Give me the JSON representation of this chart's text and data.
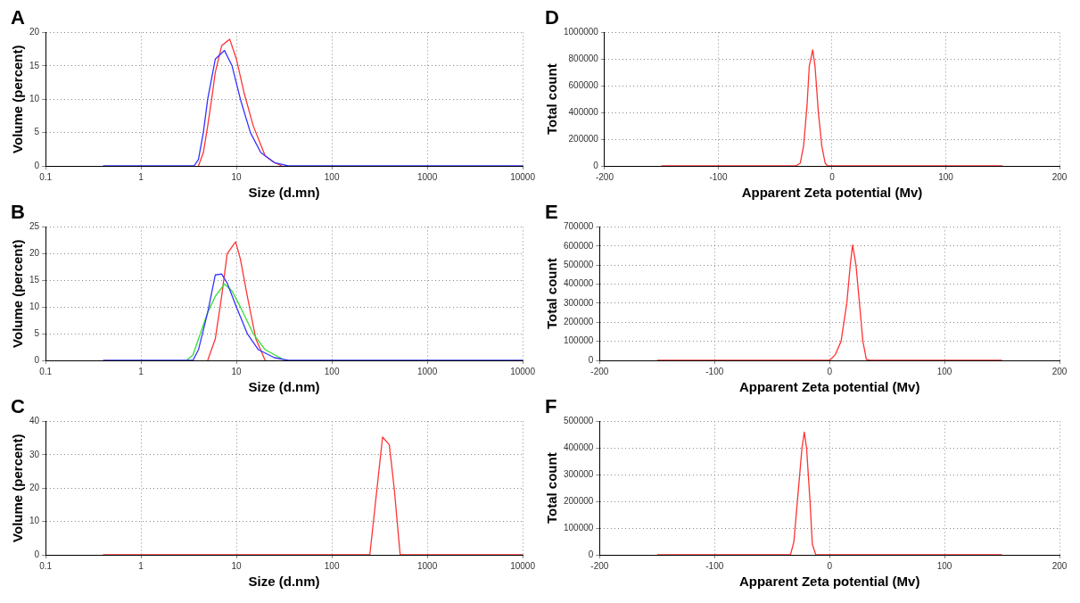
{
  "chart_data": [
    {
      "type": "line",
      "title": "A",
      "xlabel": "Size (d.mn)",
      "ylabel": "Volume (percent)",
      "log": "x",
      "xlim": [
        0.1,
        10000
      ],
      "xticks": [
        0.1,
        1,
        10,
        100,
        1000,
        10000
      ],
      "ylim": [
        0,
        20
      ],
      "yticks": [
        0,
        5,
        10,
        15,
        20
      ],
      "grid": true,
      "marker": "none",
      "line_style": "solid",
      "series": [
        {
          "color": "#ff3333",
          "x": [
            4,
            4.5,
            5,
            5.5,
            6,
            7,
            8.5,
            10,
            12,
            15,
            20,
            25,
            30
          ],
          "values": [
            0,
            2,
            6,
            10,
            14,
            18,
            19,
            16,
            11,
            6,
            1.5,
            0.5,
            0
          ]
        },
        {
          "color": "#3333ff",
          "x": [
            0.4,
            3.6,
            4,
            4.5,
            5,
            6,
            7.5,
            9,
            11,
            14,
            18,
            25,
            35,
            10000
          ],
          "values": [
            0,
            0,
            1,
            5,
            10,
            16,
            17.3,
            15,
            10,
            5,
            2,
            0.5,
            0,
            0
          ]
        }
      ]
    },
    {
      "type": "line",
      "title": "B",
      "xlabel": "Size (d.nm)",
      "ylabel": "Volume (percent)",
      "log": "x",
      "xlim": [
        0.1,
        10000
      ],
      "xticks": [
        0.1,
        1,
        10,
        100,
        1000,
        10000
      ],
      "ylim": [
        0,
        25
      ],
      "yticks": [
        0,
        5,
        10,
        15,
        20,
        25
      ],
      "grid": true,
      "marker": "none",
      "line_style": "solid",
      "series": [
        {
          "color": "#ff3333",
          "x": [
            5,
            6,
            7,
            8,
            9.8,
            11,
            13,
            16,
            20
          ],
          "values": [
            0,
            4,
            12,
            20,
            22.2,
            19,
            12,
            4,
            0
          ]
        },
        {
          "color": "#33dd33",
          "x": [
            3,
            3.5,
            4,
            5,
            6,
            7.5,
            9,
            11,
            15,
            20,
            30
          ],
          "values": [
            0,
            1,
            4,
            9,
            12,
            14.3,
            13,
            10,
            5,
            2,
            0.3
          ]
        },
        {
          "color": "#3333ff",
          "x": [
            0.4,
            3.5,
            4,
            5,
            6,
            7,
            8,
            10,
            13,
            17,
            25,
            35,
            10000
          ],
          "values": [
            0,
            0,
            2,
            9,
            16,
            16.2,
            14.5,
            10,
            5,
            2,
            0.5,
            0,
            0
          ]
        }
      ]
    },
    {
      "type": "line",
      "title": "C",
      "xlabel": "Size (d.nm)",
      "ylabel": "Volume (percent)",
      "log": "x",
      "xlim": [
        0.1,
        10000
      ],
      "xticks": [
        0.1,
        1,
        10,
        100,
        1000,
        10000
      ],
      "ylim": [
        0,
        40
      ],
      "yticks": [
        0,
        10,
        20,
        30,
        40
      ],
      "grid": true,
      "marker": "none",
      "line_style": "solid",
      "series": [
        {
          "color": "#ff3333",
          "x": [
            0.4,
            250,
            340,
            400,
            450,
            520,
            10000
          ],
          "values": [
            0,
            0,
            35.3,
            33,
            20,
            0,
            0
          ]
        }
      ]
    },
    {
      "type": "line",
      "title": "D",
      "xlabel": "Apparent Zeta potential (Mv)",
      "ylabel": "Total count",
      "xlim": [
        -200,
        200
      ],
      "xticks": [
        -200,
        -100,
        0,
        100,
        200
      ],
      "ylim": [
        0,
        1000000
      ],
      "yticks": [
        0,
        200000,
        400000,
        600000,
        800000,
        1000000
      ],
      "grid": true,
      "marker": "none",
      "line_style": "solid",
      "series": [
        {
          "color": "#ff3333",
          "x": [
            -150,
            -32,
            -28,
            -25,
            -22,
            -20,
            -17,
            -15,
            -12,
            -9,
            -6,
            -4,
            150
          ],
          "values": [
            0,
            0,
            20000,
            150000,
            450000,
            750000,
            870000,
            750000,
            400000,
            150000,
            20000,
            0,
            0
          ]
        }
      ]
    },
    {
      "type": "line",
      "title": "E",
      "xlabel": "Apparent Zeta potential (Mv)",
      "ylabel": "Total count",
      "xlim": [
        -200,
        200
      ],
      "xticks": [
        -200,
        -100,
        0,
        100,
        200
      ],
      "ylim": [
        0,
        700000
      ],
      "yticks": [
        0,
        100000,
        200000,
        300000,
        400000,
        500000,
        600000,
        700000
      ],
      "grid": true,
      "marker": "none",
      "line_style": "solid",
      "series": [
        {
          "color": "#ff3333",
          "x": [
            -150,
            0,
            5,
            10,
            15,
            18,
            20,
            23,
            26,
            29,
            32,
            35,
            150
          ],
          "values": [
            0,
            0,
            30000,
            100000,
            300000,
            500000,
            605000,
            500000,
            300000,
            100000,
            5000,
            0,
            0
          ]
        }
      ]
    },
    {
      "type": "line",
      "title": "F",
      "xlabel": "Apparent Zeta potential (Mv)",
      "ylabel": "Total count",
      "xlim": [
        -200,
        200
      ],
      "xticks": [
        -200,
        -100,
        0,
        100,
        200
      ],
      "ylim": [
        0,
        500000
      ],
      "yticks": [
        0,
        100000,
        200000,
        300000,
        400000,
        500000
      ],
      "grid": true,
      "marker": "none",
      "line_style": "solid",
      "series": [
        {
          "color": "#ff3333",
          "x": [
            -150,
            -34,
            -31,
            -28,
            -24,
            -22,
            -20,
            -17,
            -15,
            -12,
            150
          ],
          "values": [
            0,
            0,
            50000,
            200000,
            400000,
            460000,
            400000,
            200000,
            40000,
            0,
            0
          ]
        }
      ]
    }
  ]
}
